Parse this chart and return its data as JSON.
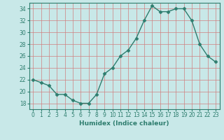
{
  "xlabel": "Humidex (Indice chaleur)",
  "x": [
    0,
    1,
    2,
    3,
    4,
    5,
    6,
    7,
    8,
    9,
    10,
    11,
    12,
    13,
    14,
    15,
    16,
    17,
    18,
    19,
    20,
    21,
    22,
    23
  ],
  "y": [
    22,
    21.5,
    21,
    19.5,
    19.5,
    18.5,
    18,
    18,
    19.5,
    23,
    24,
    26,
    27,
    29,
    32,
    34.5,
    33.5,
    33.5,
    34,
    34,
    32,
    28,
    26,
    25
  ],
  "line_color": "#2e7d6e",
  "bg_color": "#c8e8e8",
  "grid_color": "#aacece",
  "ylim": [
    17,
    35
  ],
  "yticks": [
    18,
    20,
    22,
    24,
    26,
    28,
    30,
    32,
    34
  ],
  "xlim": [
    -0.5,
    23.5
  ],
  "marker": "D",
  "markersize": 2.5,
  "linewidth": 1.0,
  "tick_fontsize": 5.5,
  "xlabel_fontsize": 6.5
}
